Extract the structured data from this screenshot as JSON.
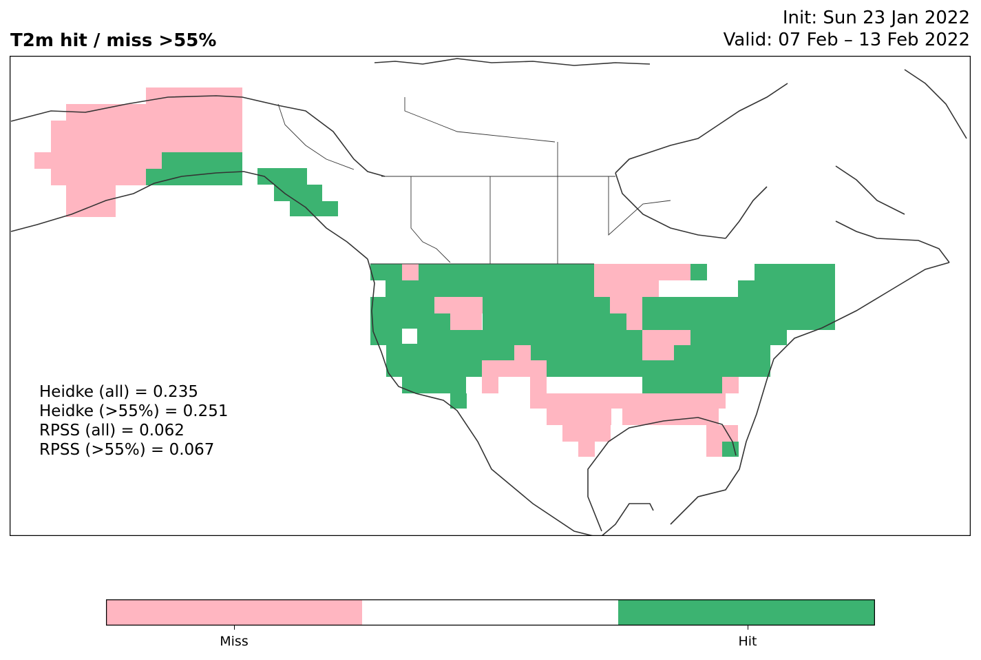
{
  "header": {
    "title": "T2m hit / miss  >55%",
    "init_line": "Init: Sun 23 Jan 2022",
    "valid_line": "Valid: 07 Feb – 13 Feb 2022"
  },
  "scores": [
    "Heidke (all) = 0.235",
    "Heidke (>55%) = 0.251",
    "RPSS (all) = 0.062",
    "RPSS (>55%) = 0.067"
  ],
  "legend": {
    "classes": [
      {
        "label": "Miss",
        "color": "#ffb6c1"
      },
      {
        "label": "",
        "color": "#ffffff"
      },
      {
        "label": "Hit",
        "color": "#3cb371"
      }
    ]
  },
  "colors": {
    "miss": "#ffb6c1",
    "hit": "#3cb371",
    "coast": "#333333"
  }
}
